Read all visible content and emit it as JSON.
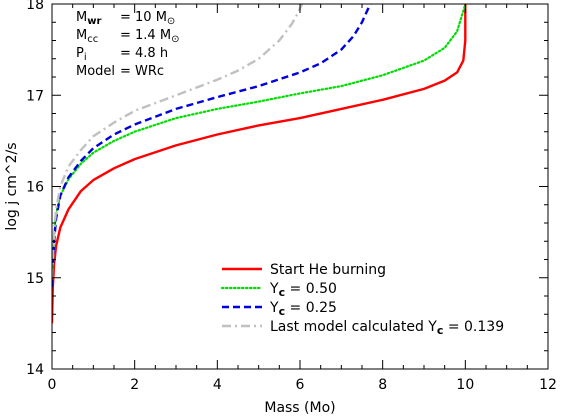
{
  "chart_data": {
    "type": "line",
    "xlabel": "Mass (Mo)",
    "ylabel": "log j cm^2/s",
    "xlim": [
      0,
      12
    ],
    "ylim": [
      14,
      18
    ],
    "x_ticks": [
      "0",
      "2",
      "4",
      "6",
      "8",
      "10",
      "12"
    ],
    "y_ticks": [
      "14",
      "15",
      "16",
      "17",
      "18"
    ],
    "grid": false,
    "annotations": [
      {
        "label": "M",
        "sub": "wr",
        "value": "= 10 M",
        "sym": "⊙",
        "bold": true
      },
      {
        "label": "M",
        "sub": "cc",
        "value": "= 1.4 M",
        "sym": "⊙",
        "bold": false
      },
      {
        "label": "P",
        "sub": "i",
        "value": "= 4.8 h",
        "sym": "",
        "bold": false
      },
      {
        "label": "Model",
        "sub": "",
        "value": "= WRc",
        "sym": "",
        "bold": false
      }
    ],
    "legend_position": "bottom-right",
    "series": [
      {
        "name": "Start He burning",
        "color": "#ff0000",
        "style": "solid",
        "x": [
          0.0,
          0.02,
          0.05,
          0.1,
          0.2,
          0.4,
          0.7,
          1.0,
          1.5,
          2.0,
          3.0,
          4.0,
          5.0,
          6.0,
          7.0,
          8.0,
          9.0,
          9.5,
          9.8,
          9.95,
          10.0,
          10.0
        ],
        "y": [
          14.5,
          14.9,
          15.15,
          15.35,
          15.55,
          15.75,
          15.95,
          16.07,
          16.2,
          16.3,
          16.45,
          16.57,
          16.67,
          16.75,
          16.85,
          16.95,
          17.07,
          17.16,
          17.25,
          17.38,
          17.6,
          18.0
        ]
      },
      {
        "name": "Y_c = 0.50",
        "color": "#00dd00",
        "style": "dotted",
        "x": [
          0.0,
          0.05,
          0.1,
          0.2,
          0.4,
          0.7,
          1.0,
          1.5,
          2.0,
          3.0,
          4.0,
          5.0,
          6.0,
          7.0,
          8.0,
          9.0,
          9.5,
          9.8,
          9.9,
          9.97,
          10.0
        ],
        "y": [
          15.0,
          15.45,
          15.7,
          15.9,
          16.08,
          16.25,
          16.37,
          16.5,
          16.6,
          16.75,
          16.85,
          16.93,
          17.02,
          17.1,
          17.22,
          17.38,
          17.52,
          17.7,
          17.85,
          17.95,
          18.0
        ]
      },
      {
        "name": "Y_c = 0.25",
        "color": "#0000dd",
        "style": "dashed",
        "x": [
          0.0,
          0.05,
          0.1,
          0.2,
          0.4,
          0.7,
          1.0,
          1.5,
          2.0,
          3.0,
          4.0,
          5.0,
          6.0,
          6.5,
          7.0,
          7.3,
          7.5,
          7.6,
          7.7
        ],
        "y": [
          14.9,
          15.4,
          15.65,
          15.9,
          16.1,
          16.28,
          16.42,
          16.57,
          16.68,
          16.85,
          16.98,
          17.1,
          17.25,
          17.35,
          17.5,
          17.65,
          17.8,
          17.9,
          18.0
        ]
      },
      {
        "name": "Last model calculated Y_c = 0.139",
        "color": "#c0c0c0",
        "style": "dashdot",
        "x": [
          0.0,
          0.05,
          0.1,
          0.2,
          0.4,
          0.7,
          1.0,
          1.5,
          2.0,
          3.0,
          4.0,
          4.5,
          5.0,
          5.5,
          5.8,
          5.95,
          6.05
        ],
        "y": [
          15.0,
          15.5,
          15.75,
          16.0,
          16.22,
          16.4,
          16.55,
          16.7,
          16.83,
          17.0,
          17.17,
          17.27,
          17.4,
          17.6,
          17.78,
          17.9,
          18.0
        ]
      }
    ],
    "legend": [
      {
        "text": "Start He burning",
        "sub": "",
        "tail": ""
      },
      {
        "text": "Y",
        "sub": "c",
        "tail": " = 0.50"
      },
      {
        "text": "Y",
        "sub": "c",
        "tail": " = 0.25"
      },
      {
        "text": "Last model calculated Y",
        "sub": "c",
        "tail": " = 0.139"
      }
    ]
  }
}
